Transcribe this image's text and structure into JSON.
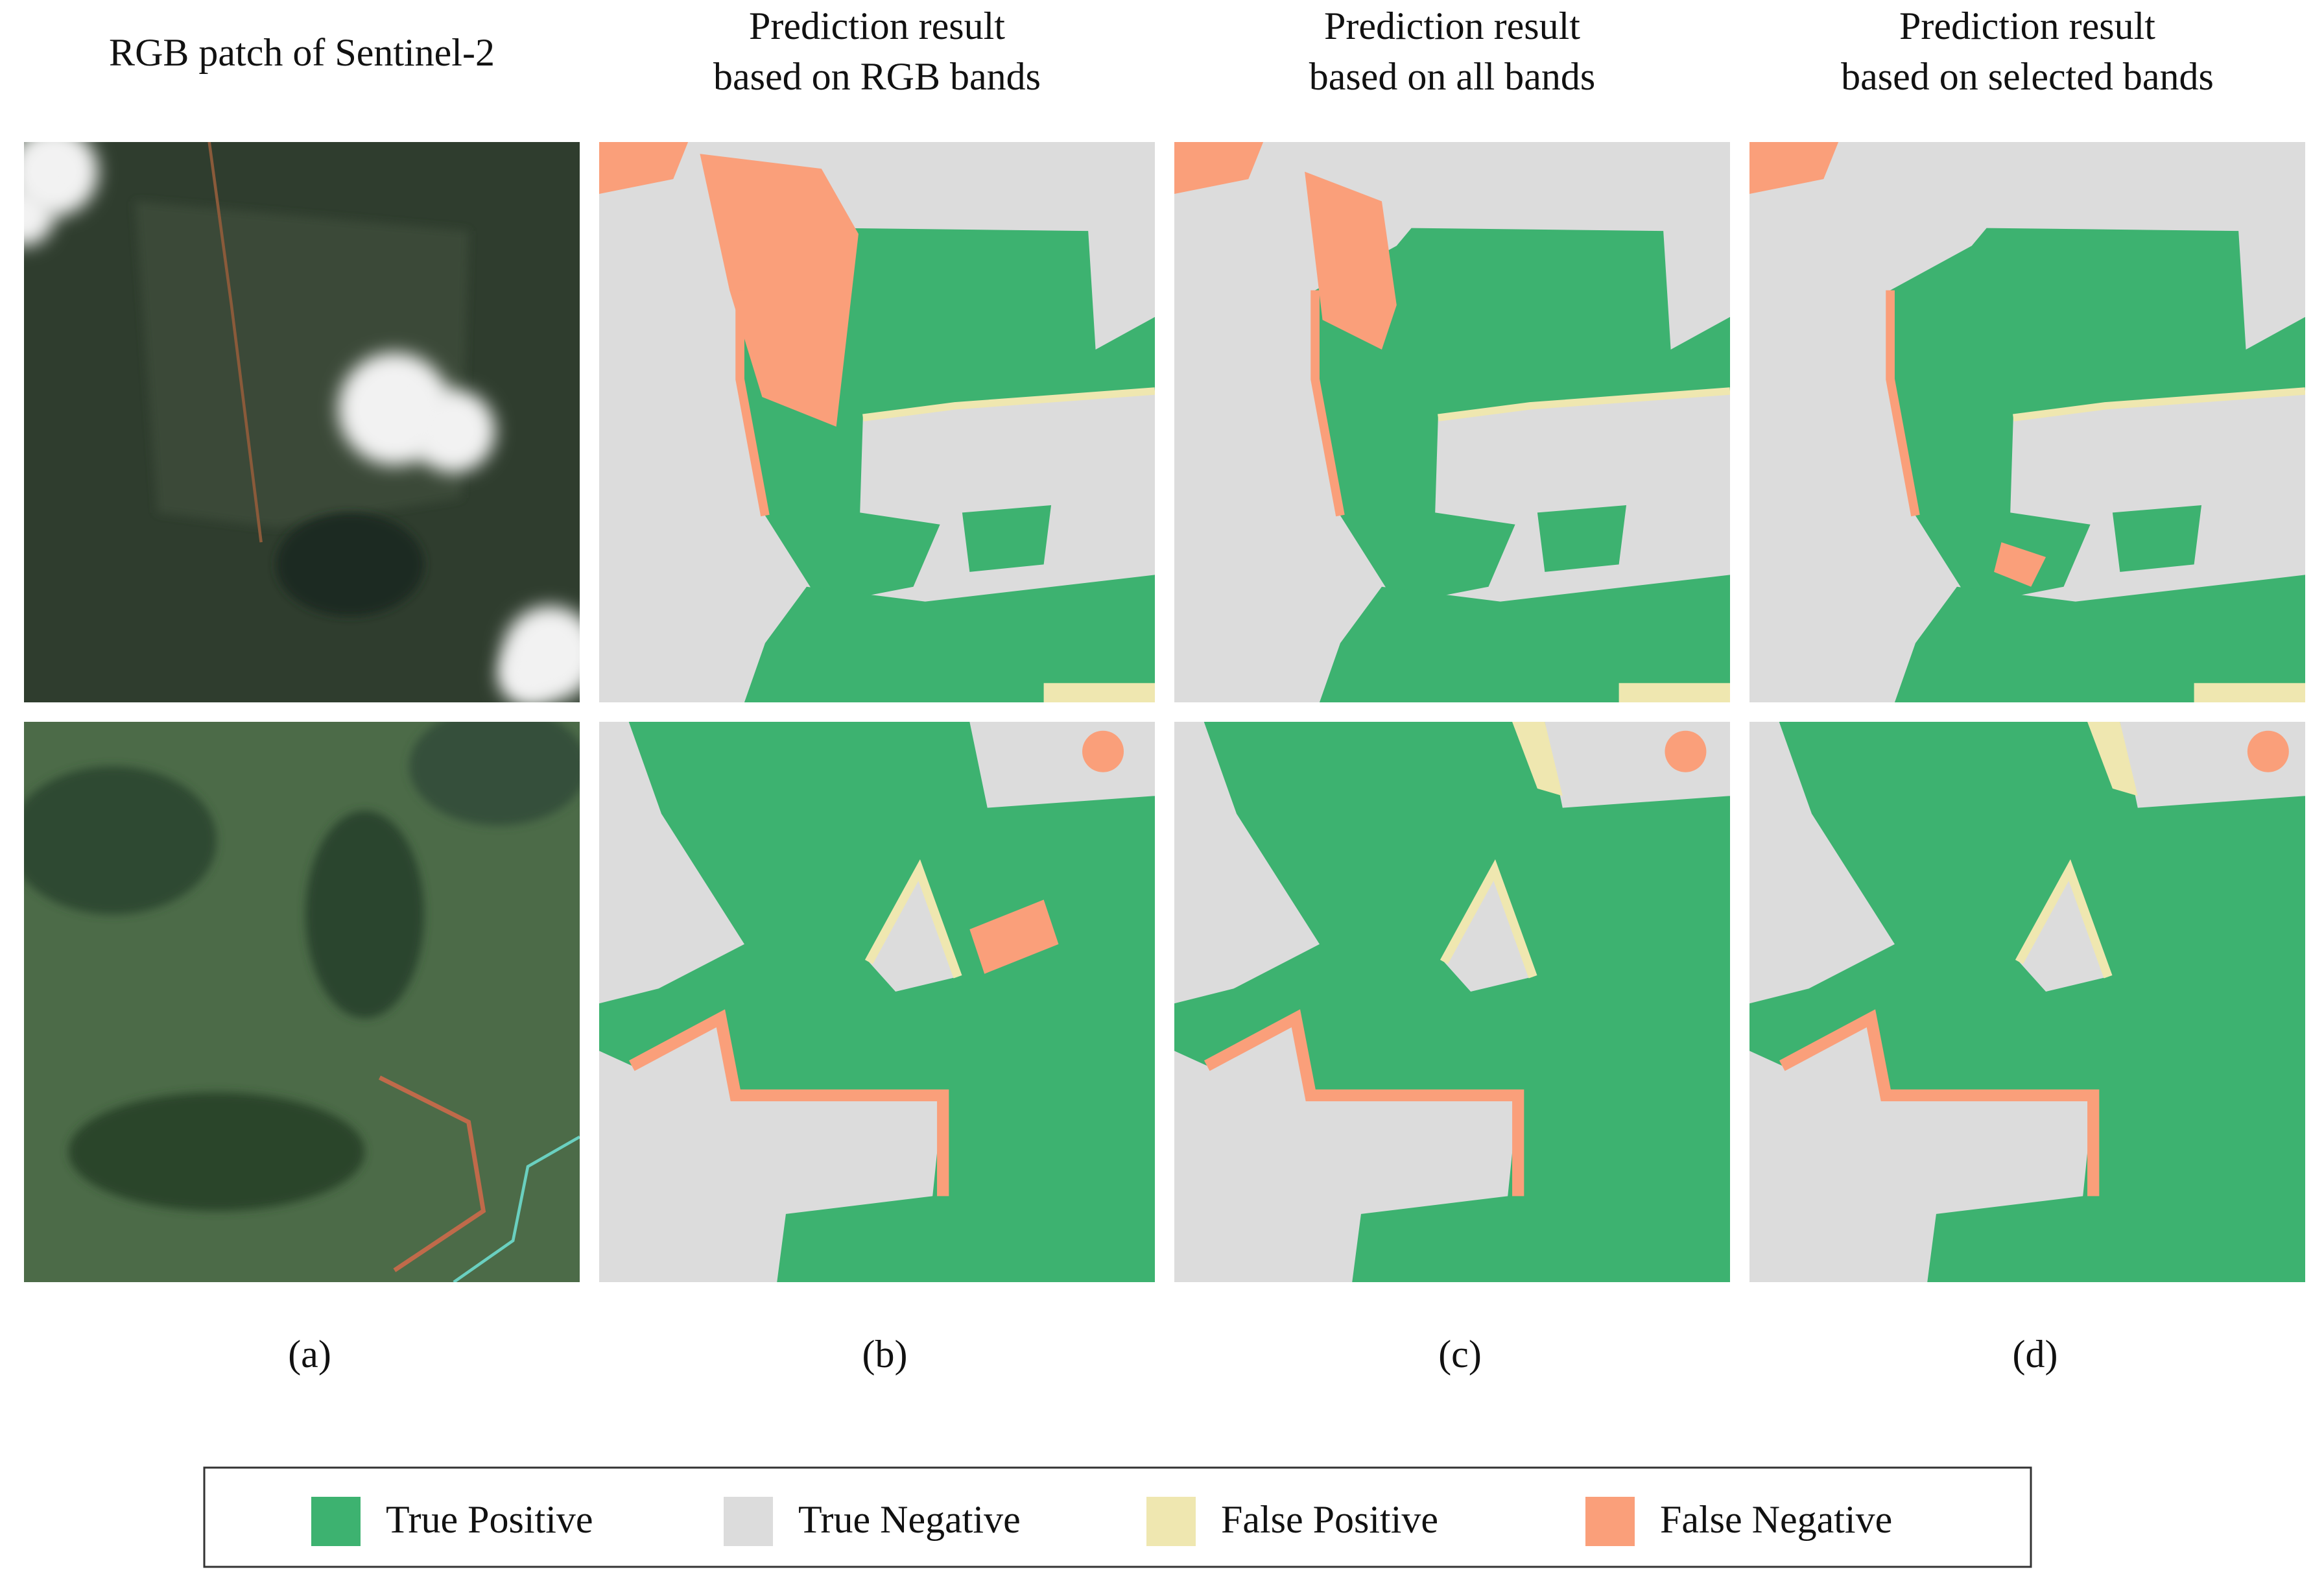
{
  "columns": [
    {
      "heading_lines": [
        "RGB patch of Sentinel-2"
      ],
      "caption": "(a)"
    },
    {
      "heading_lines": [
        "Prediction result",
        "based on RGB bands"
      ],
      "caption": "(b)"
    },
    {
      "heading_lines": [
        "Prediction result",
        "based on all bands"
      ],
      "caption": "(c)"
    },
    {
      "heading_lines": [
        "Prediction result",
        "based on selected bands"
      ],
      "caption": "(d)"
    }
  ],
  "legend": [
    {
      "label": "True Positive",
      "color": "#3db270"
    },
    {
      "label": "True Negative",
      "color": "#dcdcdc"
    },
    {
      "label": "False Positive",
      "color": "#efe7b0"
    },
    {
      "label": "False Negative",
      "color": "#fa9f7a"
    }
  ]
}
